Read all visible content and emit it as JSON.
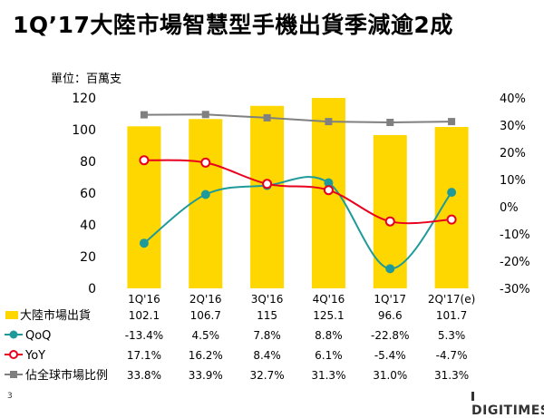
{
  "page": {
    "title": "1Q’17大陸市場智慧型手機出貨季減逾2成",
    "unit_label": "單位：百萬支",
    "page_number": "3",
    "brand": "DIGITIMES"
  },
  "colors": {
    "bar": "#FFD700",
    "qoq": "#1E9A9A",
    "yoy": "#E8001C",
    "share": "#808080"
  },
  "chart_data": {
    "type": "bar",
    "categories": [
      "1Q'16",
      "2Q'16",
      "3Q'16",
      "4Q'16",
      "1Q'17",
      "2Q'17(e)"
    ],
    "y_left": {
      "min": 0,
      "max": 120,
      "ticks": [
        0,
        20,
        40,
        60,
        80,
        100,
        120
      ]
    },
    "y_right": {
      "min": -30,
      "max": 40,
      "ticks": [
        "40%",
        "30%",
        "20%",
        "10%",
        "0%",
        "-10%",
        "-20%",
        "-30%"
      ]
    },
    "series": [
      {
        "name": "大陸市場出貨",
        "kind": "bar",
        "axis": "left",
        "values": [
          102.1,
          106.7,
          115,
          125.1,
          96.6,
          101.7
        ],
        "labels": [
          "102.1",
          "106.7",
          "115",
          "125.1",
          "96.6",
          "101.7"
        ]
      },
      {
        "name": "QoQ",
        "kind": "line",
        "axis": "right",
        "marker": "circle-filled",
        "values": [
          -13.4,
          4.5,
          7.8,
          8.8,
          -22.8,
          5.3
        ],
        "labels": [
          "-13.4%",
          "4.5%",
          "7.8%",
          "8.8%",
          "-22.8%",
          "5.3%"
        ]
      },
      {
        "name": "YoY",
        "kind": "line",
        "axis": "right",
        "marker": "circle-open",
        "values": [
          17.1,
          16.2,
          8.4,
          6.1,
          -5.4,
          -4.7
        ],
        "labels": [
          "17.1%",
          "16.2%",
          "8.4%",
          "6.1%",
          "-5.4%",
          "-4.7%"
        ]
      },
      {
        "name": "佔全球市場比例",
        "kind": "line",
        "axis": "right",
        "marker": "square",
        "values": [
          33.8,
          33.9,
          32.7,
          31.3,
          31.0,
          31.3
        ],
        "labels": [
          "33.8%",
          "33.9%",
          "32.7%",
          "31.3%",
          "31.0%",
          "31.3%"
        ]
      }
    ]
  }
}
